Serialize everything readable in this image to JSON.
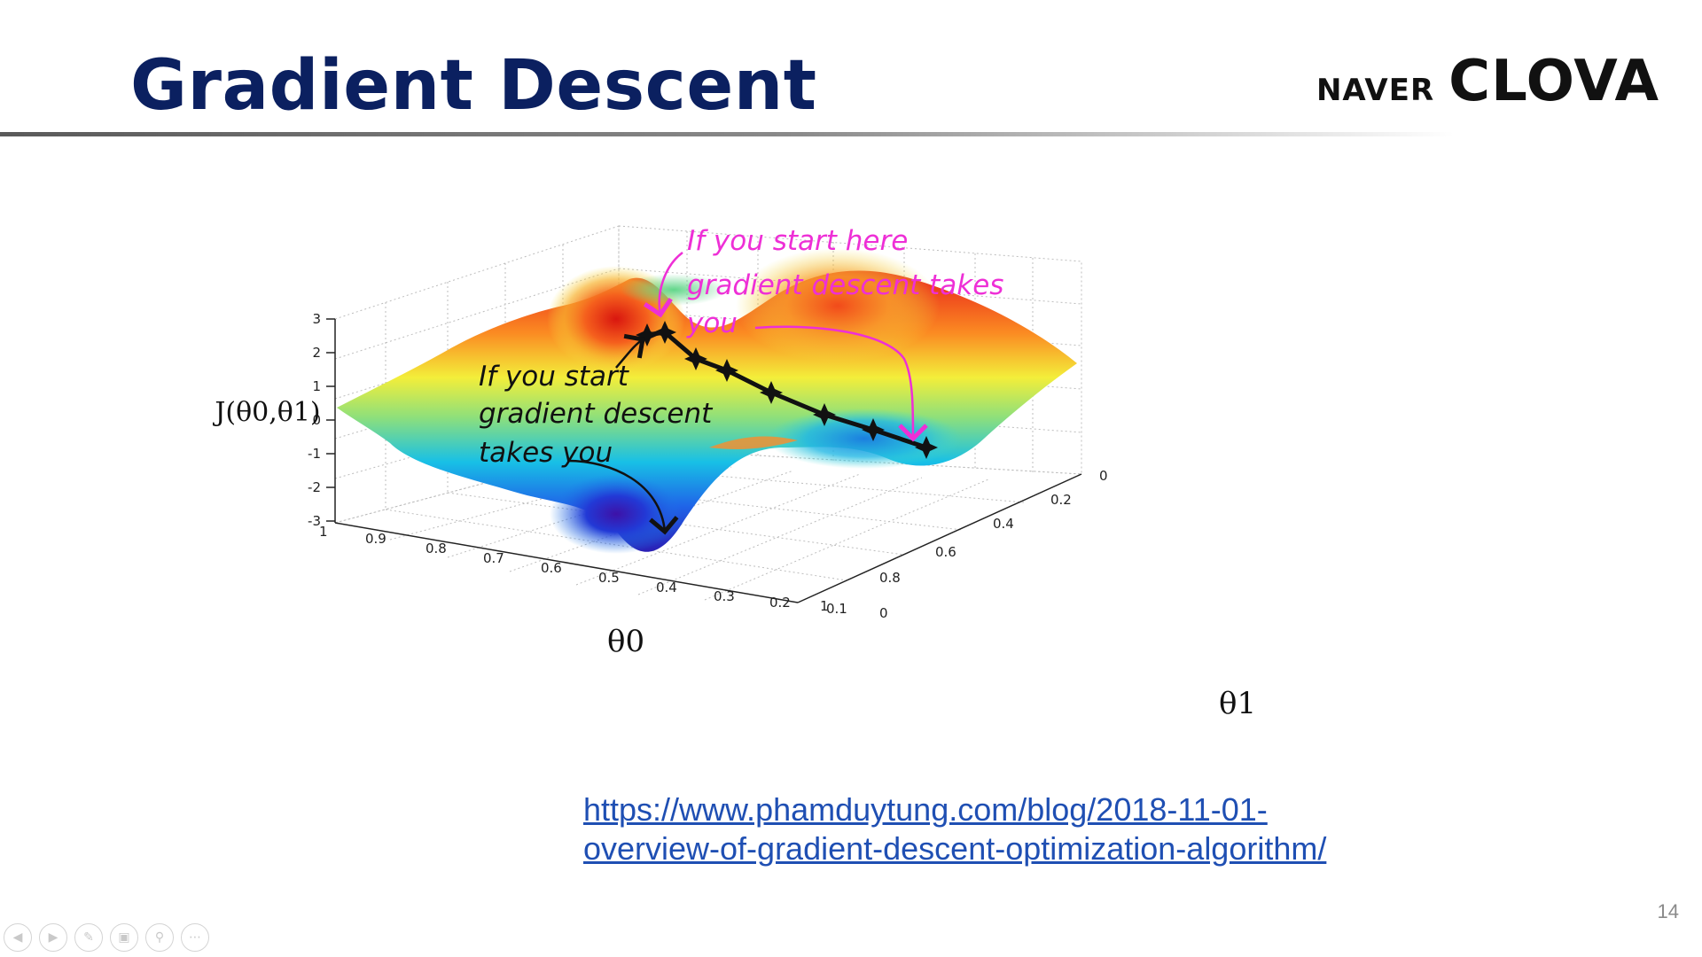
{
  "slide": {
    "title": "Gradient Descent",
    "page_number": "14"
  },
  "logo": {
    "naver": "NAVER",
    "clova": "CLOVA"
  },
  "figure": {
    "z_axis_label": "J(θ0,θ1)",
    "z_ticks": [
      "3",
      "2",
      "1",
      "0",
      "-1",
      "-2",
      "-3"
    ],
    "theta0_axis_label": "θ0",
    "theta0_ticks": [
      "1",
      "0.9",
      "0.8",
      "0.7",
      "0.6",
      "0.5",
      "0.4",
      "0.3",
      "0.2",
      "0.1",
      "0"
    ],
    "theta1_axis_label": "θ1",
    "theta1_ticks": [
      "0",
      "0.2",
      "0.4",
      "0.6",
      "0.8",
      "1"
    ],
    "annotation_black": [
      "If you start",
      "gradient descent",
      "takes you"
    ],
    "annotation_pink": [
      "If you start here",
      "gradient descent takes",
      "you"
    ]
  },
  "source": {
    "url_line1": "https://www.phamduytung.com/blog/2018-11-01-",
    "url_line2": "overview-of-gradient-descent-optimization-algorithm/"
  },
  "colors": {
    "title": "#0b2060",
    "link": "#1f4fb3",
    "pink_annotation": "#ee2fd6",
    "black_annotation": "#111111"
  },
  "nav_icons": [
    "prev-icon",
    "next-icon",
    "pen-icon",
    "slides-icon",
    "zoom-icon",
    "more-icon"
  ]
}
